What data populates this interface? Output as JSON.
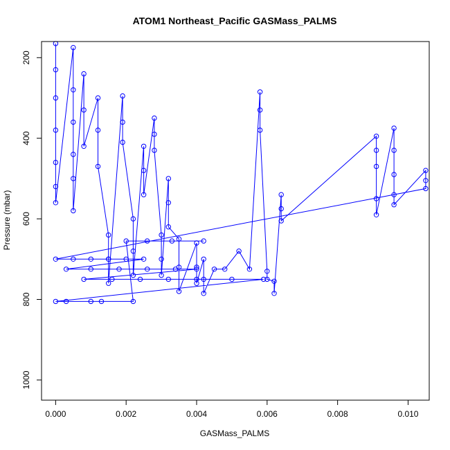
{
  "chart_data": {
    "type": "scatter",
    "title": "ATOM1 Northeast_Pacific GASMass_PALMS",
    "xlabel": "GASMass_PALMS",
    "ylabel": "Pressure (mbar)",
    "xlim": [
      -0.0004,
      0.0106
    ],
    "ylim": [
      1050,
      160
    ],
    "y_reversed": true,
    "x_ticks": [
      0.0,
      0.002,
      0.004,
      0.006,
      0.008,
      0.01
    ],
    "x_tick_labels": [
      "0.000",
      "0.002",
      "0.004",
      "0.006",
      "0.008",
      "0.010"
    ],
    "y_ticks": [
      200,
      400,
      600,
      800,
      1000
    ],
    "y_tick_labels": [
      "200",
      "400",
      "600",
      "800",
      "1000"
    ],
    "grid": false,
    "legend": "none",
    "color": "#0000ff",
    "marker": "open-circle",
    "connected": true,
    "points": [
      [
        0.0,
        165
      ],
      [
        0.0,
        230
      ],
      [
        0.0,
        300
      ],
      [
        0.0,
        380
      ],
      [
        0.0,
        460
      ],
      [
        0.0,
        520
      ],
      [
        0.0,
        560
      ],
      [
        0.0005,
        175
      ],
      [
        0.0005,
        280
      ],
      [
        0.0005,
        360
      ],
      [
        0.0005,
        440
      ],
      [
        0.0005,
        500
      ],
      [
        0.0005,
        580
      ],
      [
        0.0008,
        240
      ],
      [
        0.0008,
        330
      ],
      [
        0.0008,
        420
      ],
      [
        0.0012,
        300
      ],
      [
        0.0012,
        380
      ],
      [
        0.0012,
        470
      ],
      [
        0.0015,
        640
      ],
      [
        0.0015,
        700
      ],
      [
        0.0015,
        760
      ],
      [
        0.0019,
        295
      ],
      [
        0.0019,
        360
      ],
      [
        0.0019,
        410
      ],
      [
        0.0022,
        600
      ],
      [
        0.0022,
        680
      ],
      [
        0.0022,
        740
      ],
      [
        0.0025,
        420
      ],
      [
        0.0025,
        480
      ],
      [
        0.0025,
        540
      ],
      [
        0.0028,
        350
      ],
      [
        0.0028,
        390
      ],
      [
        0.0028,
        430
      ],
      [
        0.003,
        640
      ],
      [
        0.003,
        700
      ],
      [
        0.003,
        740
      ],
      [
        0.0032,
        500
      ],
      [
        0.0032,
        560
      ],
      [
        0.0032,
        620
      ],
      [
        0.0035,
        650
      ],
      [
        0.0035,
        720
      ],
      [
        0.0035,
        780
      ],
      [
        0.004,
        660
      ],
      [
        0.004,
        720
      ],
      [
        0.004,
        760
      ],
      [
        0.0042,
        700
      ],
      [
        0.0042,
        750
      ],
      [
        0.0042,
        785
      ],
      [
        0.0045,
        725
      ],
      [
        0.0048,
        725
      ],
      [
        0.0052,
        680
      ],
      [
        0.0055,
        725
      ],
      [
        0.0058,
        285
      ],
      [
        0.0058,
        330
      ],
      [
        0.0058,
        380
      ],
      [
        0.006,
        730
      ],
      [
        0.006,
        750
      ],
      [
        0.0062,
        755
      ],
      [
        0.0062,
        785
      ],
      [
        0.0064,
        540
      ],
      [
        0.0064,
        575
      ],
      [
        0.0064,
        605
      ],
      [
        0.0091,
        395
      ],
      [
        0.0091,
        430
      ],
      [
        0.0091,
        470
      ],
      [
        0.0091,
        550
      ],
      [
        0.0091,
        590
      ],
      [
        0.0096,
        375
      ],
      [
        0.0096,
        430
      ],
      [
        0.0096,
        490
      ],
      [
        0.0096,
        540
      ],
      [
        0.0096,
        565
      ],
      [
        0.0105,
        480
      ],
      [
        0.0105,
        505
      ],
      [
        0.0105,
        525
      ],
      [
        0.0,
        700
      ],
      [
        0.0005,
        700
      ],
      [
        0.001,
        700
      ],
      [
        0.0015,
        700
      ],
      [
        0.002,
        700
      ],
      [
        0.0025,
        700
      ],
      [
        0.0003,
        725
      ],
      [
        0.001,
        725
      ],
      [
        0.0018,
        725
      ],
      [
        0.0026,
        725
      ],
      [
        0.0034,
        725
      ],
      [
        0.004,
        725
      ],
      [
        0.0008,
        750
      ],
      [
        0.0016,
        750
      ],
      [
        0.0024,
        750
      ],
      [
        0.0032,
        750
      ],
      [
        0.004,
        750
      ],
      [
        0.005,
        750
      ],
      [
        0.0059,
        750
      ],
      [
        0.0,
        805
      ],
      [
        0.0003,
        805
      ],
      [
        0.001,
        805
      ],
      [
        0.0013,
        805
      ],
      [
        0.0022,
        805
      ],
      [
        0.002,
        655
      ],
      [
        0.0026,
        655
      ],
      [
        0.0033,
        655
      ],
      [
        0.0042,
        655
      ]
    ]
  }
}
